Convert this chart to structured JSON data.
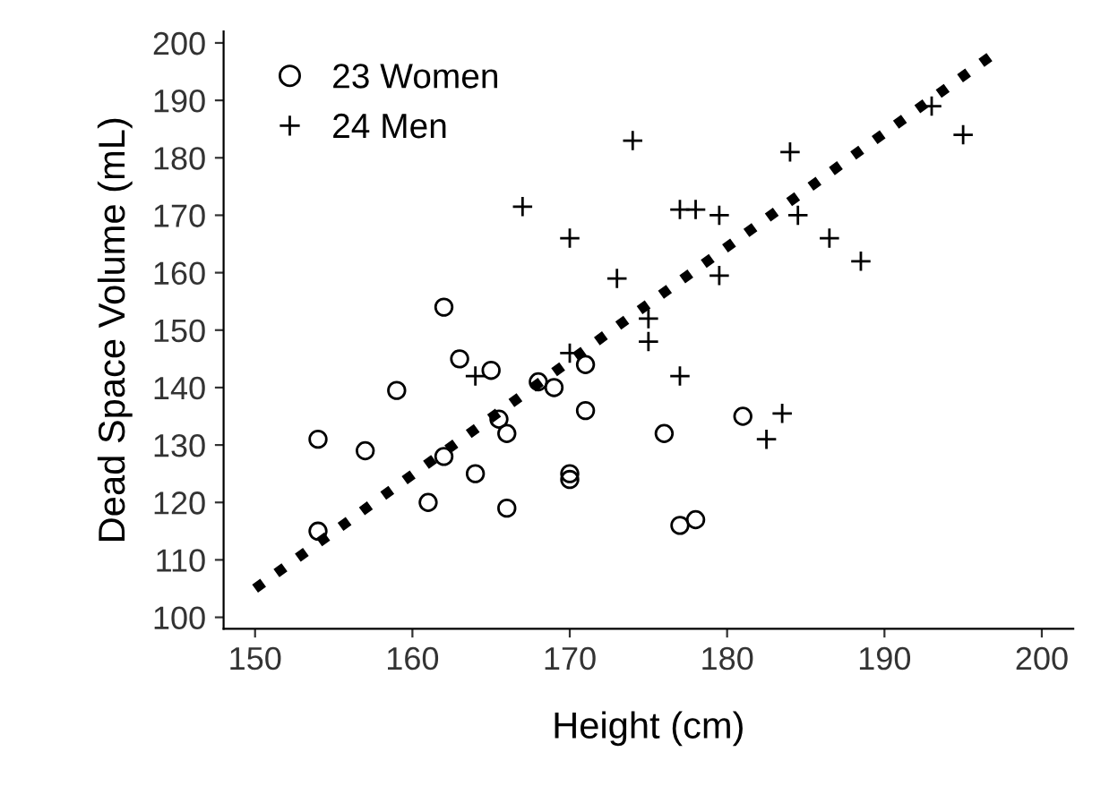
{
  "chart_data": {
    "type": "scatter",
    "xlabel": "Height (cm)",
    "ylabel": "Dead Space Volume (mL)",
    "xlim": [
      148,
      202
    ],
    "ylim": [
      98,
      202
    ],
    "xticks": [
      150,
      160,
      170,
      180,
      190,
      200
    ],
    "yticks": [
      100,
      110,
      120,
      130,
      140,
      150,
      160,
      170,
      180,
      190,
      200
    ],
    "grid": false,
    "legend": "top left",
    "series": [
      {
        "name": "23 Women",
        "color": "#000000",
        "marker": "circle",
        "x": [
          154,
          154,
          157,
          159,
          162,
          162,
          163,
          161,
          164,
          165,
          165.5,
          166,
          166,
          168,
          169,
          170,
          170,
          171,
          171,
          176,
          181,
          177,
          178
        ],
        "values": [
          131,
          115,
          129,
          139.5,
          154,
          128,
          145,
          120,
          125,
          143,
          134.5,
          132,
          119,
          141,
          140,
          125,
          124,
          144,
          136,
          132,
          135,
          116,
          117
        ]
      },
      {
        "name": "24 Men",
        "color": "#000000",
        "marker": "cross",
        "x": [
          167,
          170,
          173,
          164,
          170,
          175,
          175,
          184,
          174,
          177,
          178,
          179.5,
          193,
          195,
          184.5,
          186.5,
          188.5,
          179.5,
          177,
          183.5,
          182.5
        ],
        "values": [
          171.5,
          166,
          159,
          142,
          146,
          152,
          148,
          181,
          183,
          171,
          171,
          170,
          189,
          184,
          170,
          166,
          162,
          159.5,
          142,
          135.5,
          131
        ]
      },
      {
        "type": "line",
        "color": "#000000",
        "line_style": "dotted",
        "x": [
          150,
          196.7
        ],
        "values": [
          105,
          197.6
        ]
      }
    ]
  }
}
